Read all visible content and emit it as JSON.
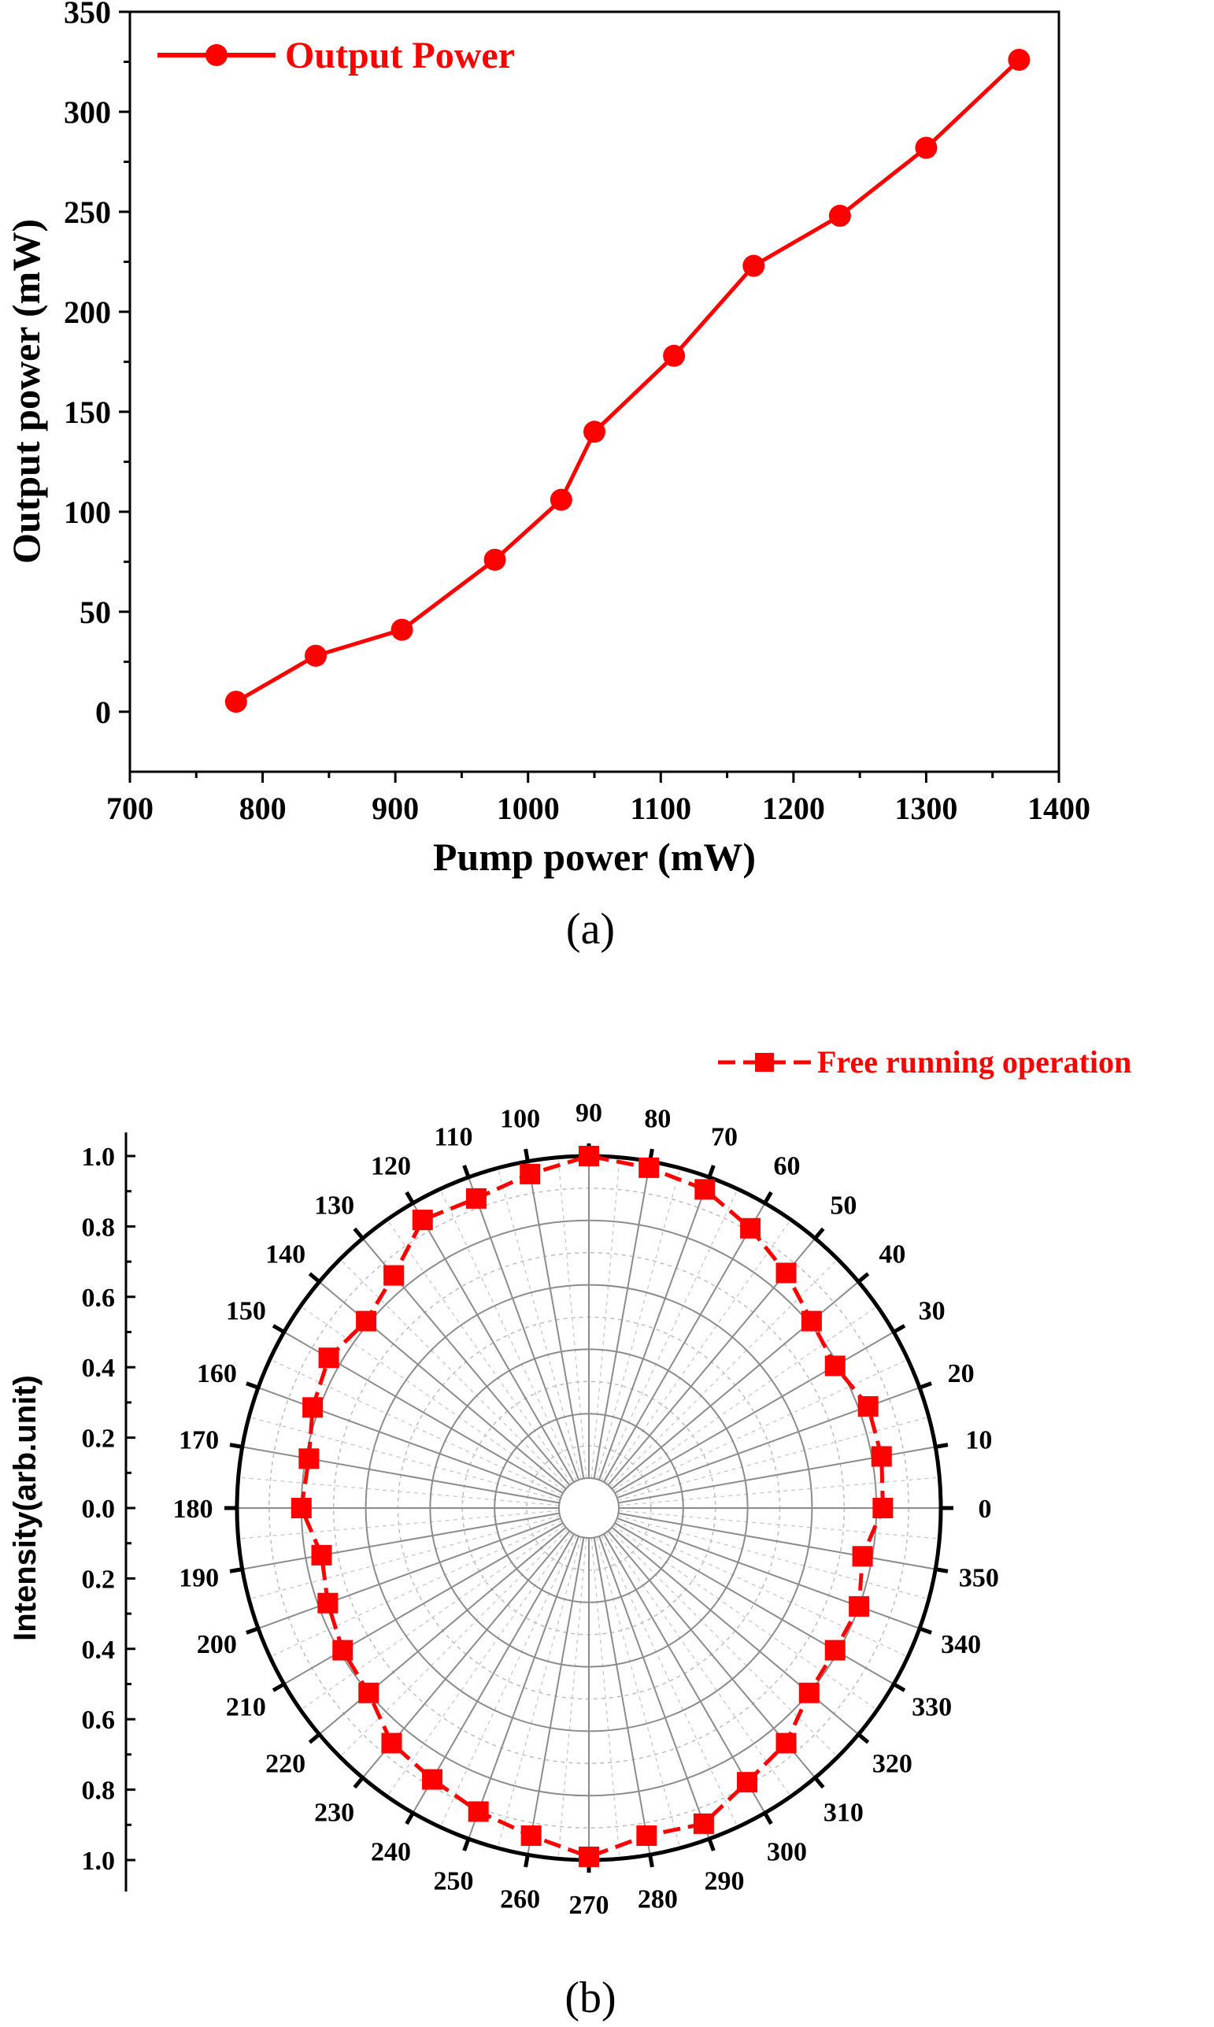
{
  "chart_data": [
    {
      "type": "line",
      "panel_label": "(a)",
      "xlabel": "Pump power (mW)",
      "ylabel": "Output power (mW)",
      "xlim": [
        700,
        1400
      ],
      "ylim": [
        -30,
        350
      ],
      "xticks": [
        700,
        800,
        900,
        1000,
        1100,
        1200,
        1300,
        1400
      ],
      "yticks": [
        0,
        50,
        100,
        150,
        200,
        250,
        300,
        350
      ],
      "legend_position": "top-left",
      "series": [
        {
          "name": "Output Power",
          "marker": "circle",
          "color": "#ff0000",
          "x": [
            780,
            840,
            905,
            975,
            1025,
            1050,
            1110,
            1170,
            1235,
            1300,
            1370
          ],
          "y": [
            5,
            28,
            41,
            76,
            106,
            140,
            178,
            223,
            248,
            282,
            326
          ]
        }
      ]
    },
    {
      "type": "polar",
      "panel_label": "(b)",
      "ylabel": "Intensity(arb.unit)",
      "r_range": [
        0,
        1.0
      ],
      "r_ticks": [
        "1.0",
        "0.8",
        "0.6",
        "0.4",
        "0.2",
        "0.0",
        "0.2",
        "0.4",
        "0.6",
        "0.8",
        "1.0"
      ],
      "angle_ticks": [
        0,
        10,
        20,
        30,
        40,
        50,
        60,
        70,
        80,
        90,
        100,
        110,
        120,
        130,
        140,
        150,
        160,
        170,
        180,
        190,
        200,
        210,
        220,
        230,
        240,
        250,
        260,
        270,
        280,
        290,
        300,
        310,
        320,
        330,
        340,
        350
      ],
      "grid": true,
      "legend_position": "top-right",
      "series": [
        {
          "name": "Free running operation",
          "marker": "square",
          "line_style": "dashed",
          "color": "#ff0000",
          "theta": [
            0,
            10,
            20,
            30,
            40,
            50,
            60,
            70,
            80,
            90,
            100,
            110,
            120,
            130,
            140,
            150,
            160,
            170,
            180,
            190,
            200,
            210,
            220,
            230,
            240,
            250,
            260,
            270,
            280,
            290,
            300,
            310,
            320,
            330,
            340,
            350
          ],
          "r": [
            0.82,
            0.83,
            0.83,
            0.79,
            0.81,
            0.86,
            0.91,
            0.96,
            0.98,
            1.0,
            0.96,
            0.93,
            0.94,
            0.85,
            0.81,
            0.84,
            0.82,
            0.79,
            0.8,
            0.75,
            0.77,
            0.79,
            0.8,
            0.86,
            0.88,
            0.91,
            0.94,
            0.99,
            0.94,
            0.95,
            0.89,
            0.86,
            0.8,
            0.79,
            0.8,
            0.77
          ]
        }
      ]
    }
  ]
}
